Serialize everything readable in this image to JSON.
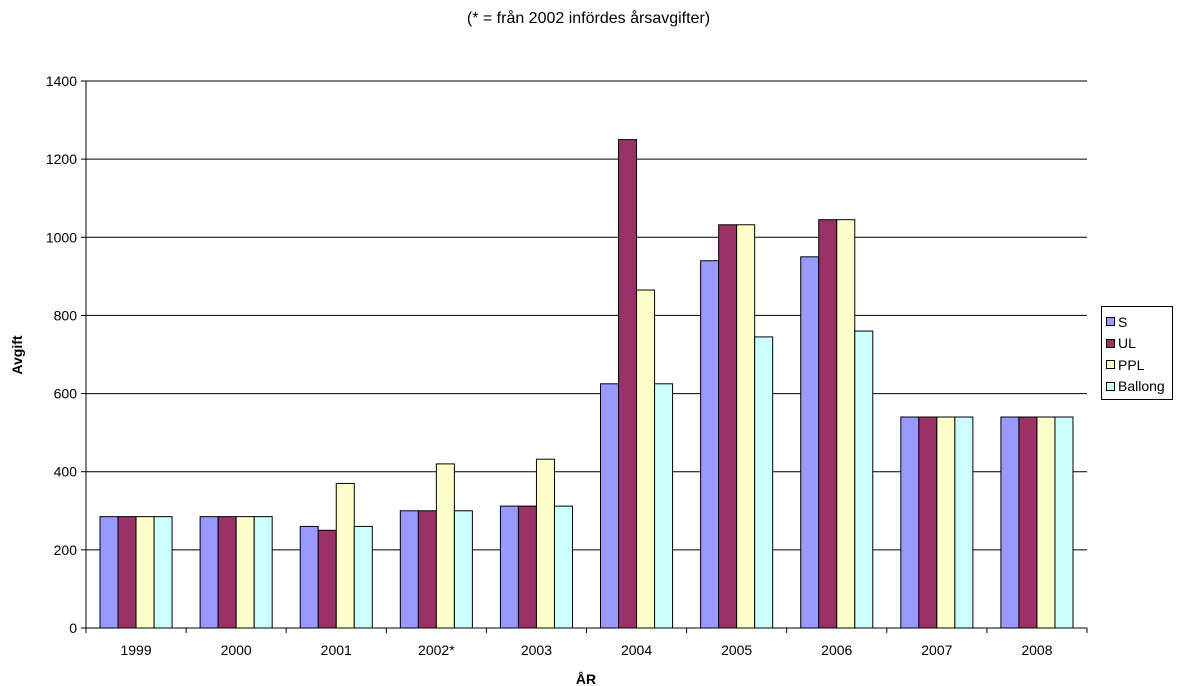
{
  "chart_data": {
    "type": "bar",
    "title": "",
    "subtitle": "(* = från 2002 infördes årsavgifter)",
    "xlabel": "ÅR",
    "ylabel": "Avgift",
    "categories": [
      "1999",
      "2000",
      "2001",
      "2002*",
      "2003",
      "2004",
      "2005",
      "2006",
      "2007",
      "2008"
    ],
    "ylim": [
      0,
      1400
    ],
    "yticks": [
      0,
      200,
      400,
      600,
      800,
      1000,
      1200,
      1400
    ],
    "grid": true,
    "legend_position": "right",
    "series": [
      {
        "name": "S",
        "color": "#9999ff",
        "values": [
          285,
          285,
          260,
          300,
          312,
          625,
          940,
          950,
          540,
          540
        ]
      },
      {
        "name": "UL",
        "color": "#993366",
        "values": [
          285,
          285,
          250,
          300,
          312,
          1250,
          1032,
          1045,
          540,
          540
        ]
      },
      {
        "name": "PPL",
        "color": "#ffffcc",
        "values": [
          285,
          285,
          370,
          420,
          432,
          865,
          1032,
          1045,
          540,
          540
        ]
      },
      {
        "name": "Ballong",
        "color": "#ccffff",
        "values": [
          285,
          285,
          260,
          300,
          312,
          625,
          745,
          760,
          540,
          540
        ]
      }
    ]
  }
}
